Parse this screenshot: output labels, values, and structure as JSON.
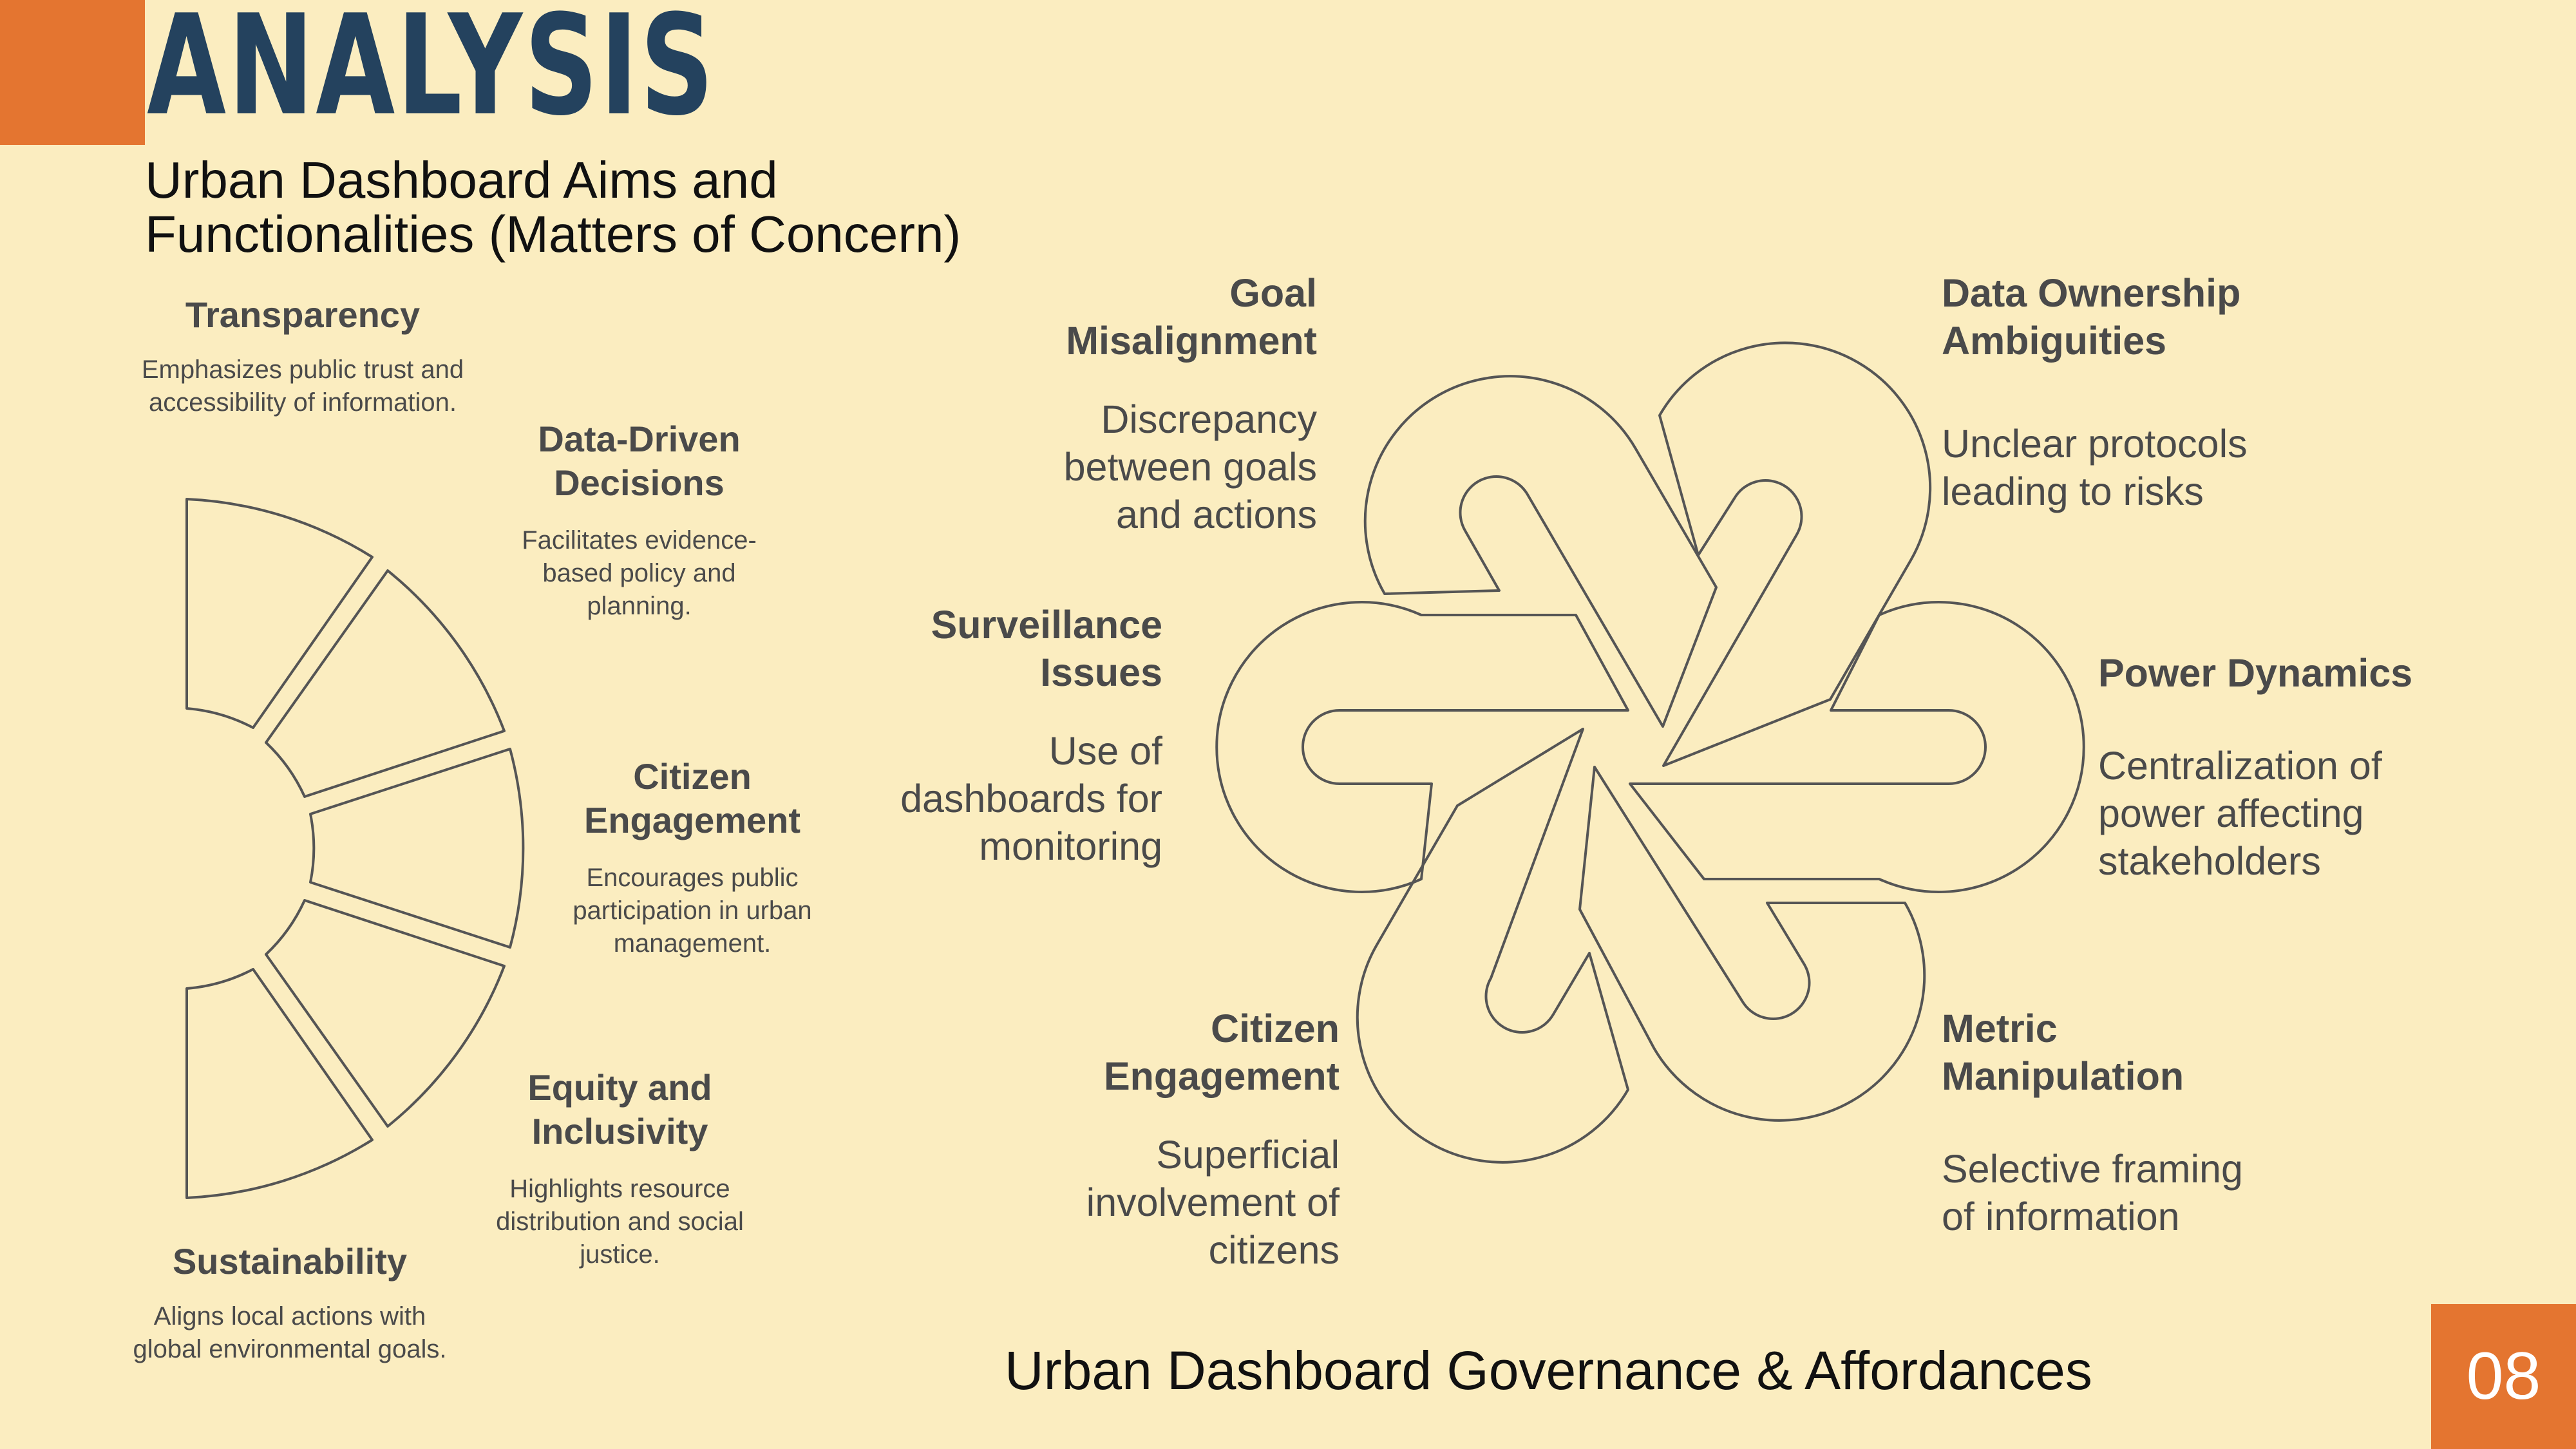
{
  "header": {
    "title": "ANALYSIS",
    "subtitle": "Urban Dashboard Aims and\nFunctionalities (Matters of Concern)"
  },
  "aims": [
    {
      "title": "Transparency",
      "description": "Emphasizes public trust and accessibility of information."
    },
    {
      "title": "Data-Driven Decisions",
      "description": "Facilitates evidence-based policy and planning."
    },
    {
      "title": "Citizen Engagement",
      "description": "Encourages public participation in urban management."
    },
    {
      "title": "Equity and Inclusivity",
      "description": "Highlights resource distribution and social justice."
    },
    {
      "title": "Sustainability",
      "description": "Aligns local actions with global environmental goals."
    }
  ],
  "concerns": [
    {
      "title": "Goal Misalignment",
      "description": "Discrepancy between goals and actions"
    },
    {
      "title": "Data Ownership Ambiguities",
      "description": "Unclear protocols leading to risks"
    },
    {
      "title": "Surveillance Issues",
      "description": "Use of dashboards for monitoring"
    },
    {
      "title": "Power Dynamics",
      "description": "Centralization of power affecting stakeholders"
    },
    {
      "title": "Citizen Engagement",
      "description": "Superficial involvement of citizens"
    },
    {
      "title": "Metric Manipulation",
      "description": "Selective framing of information"
    }
  ],
  "footer": {
    "caption": "Urban Dashboard Governance & Affordances",
    "page_number": "08"
  }
}
